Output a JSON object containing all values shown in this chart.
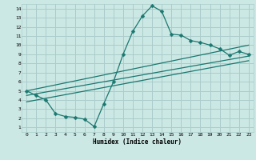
{
  "title": "",
  "xlabel": "Humidex (Indice chaleur)",
  "bg_color": "#cce8e4",
  "grid_color": "#aacccc",
  "line_color": "#1a7870",
  "xlim": [
    -0.5,
    23.5
  ],
  "ylim": [
    0.5,
    14.5
  ],
  "xticks": [
    0,
    1,
    2,
    3,
    4,
    5,
    6,
    7,
    8,
    9,
    10,
    11,
    12,
    13,
    14,
    15,
    16,
    17,
    18,
    19,
    20,
    21,
    22,
    23
  ],
  "yticks": [
    1,
    2,
    3,
    4,
    5,
    6,
    7,
    8,
    9,
    10,
    11,
    12,
    13,
    14
  ],
  "main_x": [
    0,
    1,
    2,
    3,
    4,
    5,
    6,
    7,
    8,
    9,
    10,
    11,
    12,
    13,
    14,
    15,
    16,
    17,
    18,
    19,
    20,
    21,
    22,
    23
  ],
  "main_y": [
    5.0,
    4.5,
    4.0,
    2.5,
    2.2,
    2.1,
    1.9,
    1.1,
    3.6,
    6.0,
    9.0,
    11.5,
    13.2,
    14.3,
    13.7,
    11.2,
    11.1,
    10.5,
    10.3,
    10.0,
    9.6,
    8.9,
    9.3,
    9.0
  ],
  "line1_x": [
    0,
    23
  ],
  "line1_y": [
    5.0,
    10.0
  ],
  "line2_x": [
    0,
    23
  ],
  "line2_y": [
    4.5,
    8.8
  ],
  "line3_x": [
    0,
    23
  ],
  "line3_y": [
    3.8,
    8.3
  ],
  "marker_size": 2.5,
  "line_width": 0.9
}
